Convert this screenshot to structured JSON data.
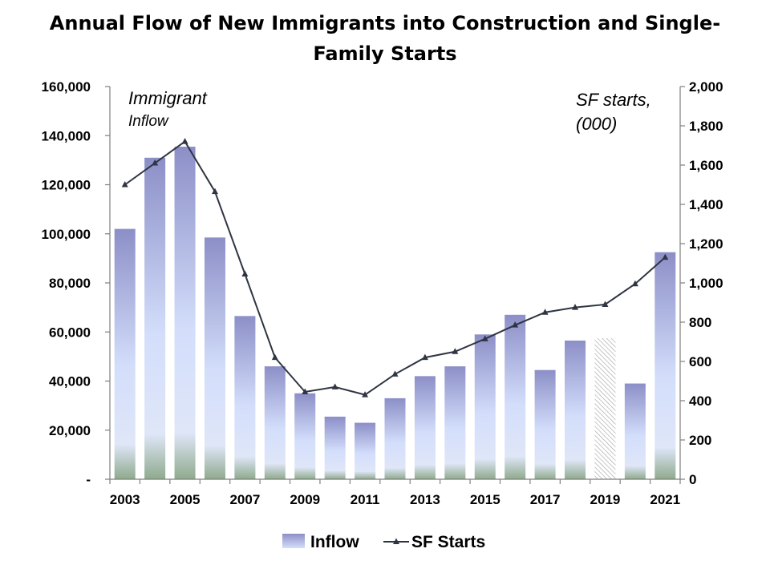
{
  "title": "Annual Flow of New Immigrants into Construction and Single-Family Starts",
  "chart_data": {
    "type": "bar",
    "title": "Annual Flow of New Immigrants into Construction and Single-Family Starts",
    "categories": [
      "2003",
      "2004",
      "2005",
      "2006",
      "2007",
      "2008",
      "2009",
      "2010",
      "2011",
      "2012",
      "2013",
      "2014",
      "2015",
      "2016",
      "2017",
      "2018",
      "2019",
      "2020",
      "2021"
    ],
    "x_tick_labels": [
      "2003",
      "2005",
      "2007",
      "2009",
      "2011",
      "2013",
      "2015",
      "2017",
      "2019",
      "2021"
    ],
    "series": [
      {
        "name": "Inflow",
        "type": "bar",
        "axis": "left",
        "values": [
          102000,
          131000,
          135500,
          98500,
          66500,
          46000,
          35000,
          25500,
          23000,
          33000,
          42000,
          46000,
          59000,
          67000,
          44500,
          56500,
          57500,
          39000,
          92500
        ],
        "hatched_category": "2019"
      },
      {
        "name": "SF Starts",
        "type": "line",
        "axis": "right",
        "values": [
          1500,
          1610,
          1720,
          1465,
          1045,
          620,
          445,
          470,
          430,
          535,
          620,
          650,
          715,
          785,
          850,
          875,
          890,
          995,
          1130
        ]
      }
    ],
    "y_left": {
      "ylim": [
        0,
        160000
      ],
      "ticks": [
        "-",
        "20,000",
        "40,000",
        "60,000",
        "80,000",
        "100,000",
        "120,000",
        "140,000",
        "160,000"
      ]
    },
    "y_right": {
      "ylim": [
        0,
        2000
      ],
      "ticks": [
        "0",
        "200",
        "400",
        "600",
        "800",
        "1,000",
        "1,200",
        "1,400",
        "1,600",
        "1,800",
        "2,000"
      ]
    },
    "annotations": {
      "left_line1": "Immigrant",
      "left_line2": "Inflow",
      "right_line1": "SF starts,",
      "right_line2": "(000)"
    },
    "legend": {
      "placement": "bottom",
      "items": [
        "Inflow",
        "SF Starts"
      ]
    },
    "grid": false,
    "colors": {
      "bar_top": "#8c8fc7",
      "bar_mid": "#d3defb",
      "bar_base": "#8faa8c",
      "line": "#2f3542"
    }
  }
}
